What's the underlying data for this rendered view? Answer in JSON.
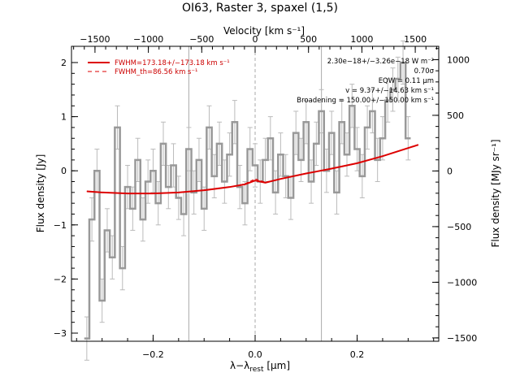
{
  "chart_data": {
    "type": "line",
    "title": "OI63, Raster 3, spaxel (1,5)",
    "xlabel_main": "λ−λ",
    "xlabel_sub": "rest",
    "xlabel_unit": " [μm]",
    "ylabel_left": "Flux density [Jy]",
    "ylabel_right": "Flux density [MJy sr⁻¹]",
    "top_axis_label": "Velocity [km s⁻¹]",
    "xlim": [
      -0.36,
      0.36
    ],
    "ylim": [
      -3.15,
      2.3
    ],
    "right_ylim": [
      -1530,
      1120
    ],
    "top_xlim": [
      -1720,
      1720
    ],
    "x_ticks": [
      -0.2,
      0.0,
      0.2
    ],
    "x_tick_labels": [
      "−0.2",
      "0.0",
      "0.2"
    ],
    "y_ticks": [
      -3,
      -2,
      -1,
      0,
      1,
      2
    ],
    "y_tick_labels": [
      "−3",
      "−2",
      "−1",
      "0",
      "1",
      "2"
    ],
    "right_ticks": [
      -1500,
      -1000,
      -500,
      0,
      500,
      1000
    ],
    "right_tick_labels": [
      "−1500",
      "−1000",
      "−500",
      "0",
      "500",
      "1000"
    ],
    "top_ticks": [
      -1500,
      -1000,
      -500,
      0,
      500,
      1000,
      1500
    ],
    "top_tick_labels": [
      "−1500",
      "−1000",
      "−500",
      "0",
      "500",
      "1000",
      "1500"
    ],
    "vertical_lines": [
      -0.13,
      0.0,
      0.13
    ],
    "legend": [
      {
        "label": "FWHM=173.18+/−173.18 km s⁻¹",
        "style": "solid",
        "color": "#dd0000"
      },
      {
        "label": "FWHM_th=86.56 km s⁻¹",
        "style": "dashed",
        "color": "#dd0000"
      }
    ],
    "annotations": [
      "2.30e−18+/−3.26e−18 W m⁻²",
      "0.70σ",
      "EQW = 0.11 μm",
      "v = 9.37+/−14.63 km s⁻¹",
      "Broadening = 150.00+/−150.00 km s⁻¹"
    ],
    "series": [
      {
        "name": "spectrum",
        "color": "#999999",
        "x": [
          -0.33,
          -0.32,
          -0.31,
          -0.3,
          -0.29,
          -0.28,
          -0.27,
          -0.26,
          -0.25,
          -0.24,
          -0.23,
          -0.22,
          -0.21,
          -0.2,
          -0.19,
          -0.18,
          -0.17,
          -0.16,
          -0.15,
          -0.14,
          -0.13,
          -0.12,
          -0.11,
          -0.1,
          -0.09,
          -0.08,
          -0.07,
          -0.06,
          -0.05,
          -0.04,
          -0.03,
          -0.02,
          -0.01,
          0.0,
          0.01,
          0.02,
          0.03,
          0.04,
          0.05,
          0.06,
          0.07,
          0.08,
          0.09,
          0.1,
          0.11,
          0.12,
          0.13,
          0.14,
          0.15,
          0.16,
          0.17,
          0.18,
          0.19,
          0.2,
          0.21,
          0.22,
          0.23,
          0.24,
          0.25,
          0.26,
          0.27,
          0.28,
          0.29,
          0.3
        ],
        "y": [
          -3.1,
          -0.9,
          0.0,
          -2.4,
          -1.1,
          -1.6,
          0.8,
          -1.8,
          -0.3,
          -0.7,
          0.2,
          -0.9,
          -0.2,
          0.0,
          -0.6,
          0.5,
          -0.3,
          0.1,
          -0.5,
          -0.8,
          0.4,
          -0.4,
          0.2,
          -0.7,
          0.8,
          -0.1,
          0.5,
          -0.2,
          0.3,
          0.9,
          -0.3,
          -0.6,
          0.4,
          0.1,
          -0.2,
          0.2,
          0.6,
          -0.4,
          0.3,
          -0.1,
          -0.5,
          0.7,
          0.2,
          0.9,
          -0.2,
          0.5,
          1.1,
          0.0,
          0.7,
          -0.4,
          0.9,
          0.3,
          1.2,
          0.4,
          -0.1,
          0.8,
          1.1,
          0.2,
          0.6,
          1.3,
          1.5,
          1.7,
          2.0,
          0.6
        ],
        "err": 0.4
      },
      {
        "name": "fit",
        "color": "#dd0000",
        "x": [
          -0.33,
          -0.3,
          -0.25,
          -0.2,
          -0.15,
          -0.1,
          -0.05,
          -0.02,
          0.0,
          0.02,
          0.05,
          0.1,
          0.15,
          0.2,
          0.25,
          0.3,
          0.32
        ],
        "y": [
          -0.38,
          -0.4,
          -0.42,
          -0.42,
          -0.4,
          -0.36,
          -0.3,
          -0.25,
          -0.18,
          -0.22,
          -0.15,
          -0.05,
          0.04,
          0.14,
          0.27,
          0.42,
          0.48
        ]
      },
      {
        "name": "fit_th",
        "color": "#dd0000",
        "dashed": true,
        "x": [
          -0.33,
          -0.3,
          -0.25,
          -0.2,
          -0.15,
          -0.1,
          -0.05,
          -0.02,
          0.0,
          0.02,
          0.05,
          0.1,
          0.15,
          0.2,
          0.25,
          0.3,
          0.32
        ],
        "y": [
          -0.38,
          -0.4,
          -0.42,
          -0.42,
          -0.4,
          -0.36,
          -0.3,
          -0.24,
          -0.15,
          -0.21,
          -0.15,
          -0.05,
          0.04,
          0.14,
          0.27,
          0.42,
          0.48
        ]
      }
    ]
  }
}
